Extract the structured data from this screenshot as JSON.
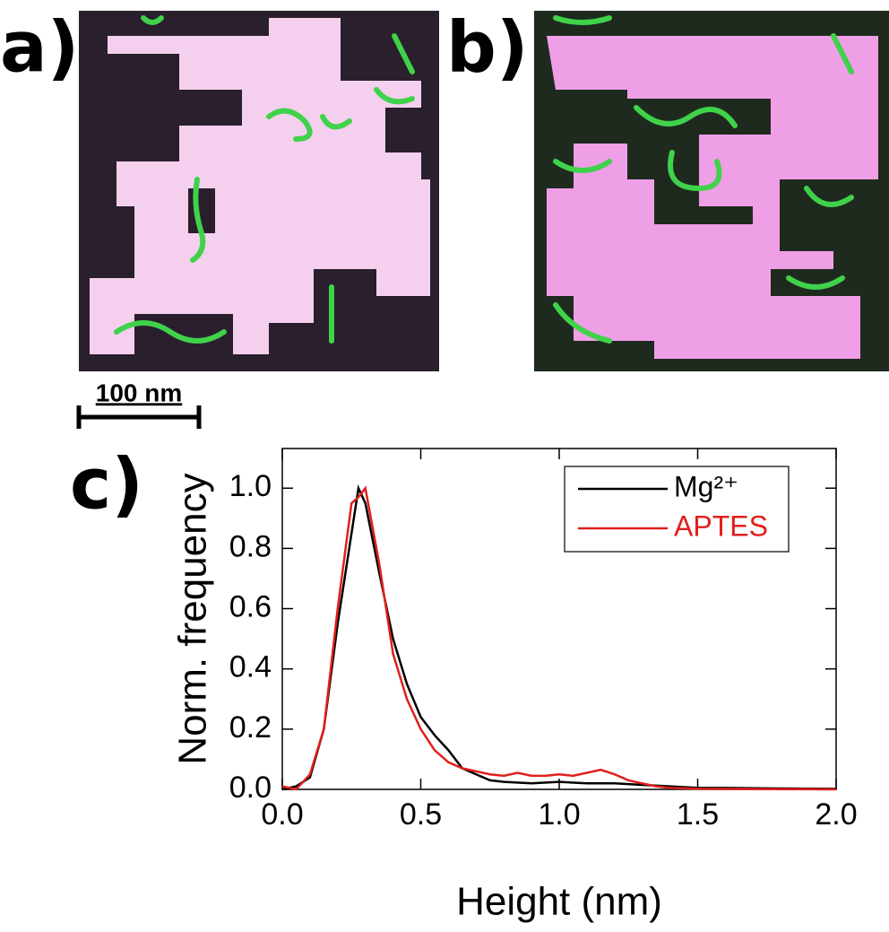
{
  "panels": {
    "a": "a)",
    "b": "b)",
    "scale_bar": "100 nm"
  },
  "chart_data": {
    "type": "line",
    "panel_label": "c)",
    "x_label": "Height (nm)",
    "y_label": "Norm. frequency",
    "xlim": [
      0,
      2
    ],
    "ylim": [
      0,
      1.1
    ],
    "xticks": [
      {
        "value": 0,
        "label": "0.0"
      },
      0.5,
      {
        "value": 1,
        "label": "1.0"
      },
      1.5,
      {
        "value": 2,
        "label": "2.0"
      }
    ],
    "yticks": [
      {
        "value": 0,
        "label": "0.0"
      },
      0.2,
      0.4,
      0.6,
      0.8,
      {
        "value": 1,
        "label": "1.0"
      }
    ],
    "legend": "top-right",
    "series": [
      {
        "name": "Mg²⁺",
        "color": "#000000",
        "x": [
          0,
          0.05,
          0.1,
          0.15,
          0.2,
          0.25,
          0.275,
          0.3,
          0.35,
          0.4,
          0.45,
          0.5,
          0.55,
          0.6,
          0.65,
          0.7,
          0.75,
          0.8,
          0.9,
          1.0,
          1.1,
          1.2,
          1.3,
          1.4,
          1.5,
          1.6,
          1.8,
          2.0
        ],
        "values": [
          0,
          0.01,
          0.04,
          0.2,
          0.55,
          0.85,
          1.0,
          0.95,
          0.72,
          0.5,
          0.35,
          0.24,
          0.18,
          0.13,
          0.07,
          0.05,
          0.03,
          0.025,
          0.02,
          0.025,
          0.02,
          0.02,
          0.015,
          0.01,
          0.005,
          0.005,
          0.003,
          0.002
        ]
      },
      {
        "name": "APTES",
        "color": "#e0201c",
        "x": [
          0,
          0.05,
          0.1,
          0.15,
          0.2,
          0.25,
          0.275,
          0.3,
          0.35,
          0.4,
          0.45,
          0.5,
          0.55,
          0.6,
          0.65,
          0.7,
          0.75,
          0.8,
          0.85,
          0.9,
          0.95,
          1.0,
          1.05,
          1.1,
          1.15,
          1.2,
          1.25,
          1.3,
          1.35,
          1.4,
          1.5,
          2.0
        ],
        "values": [
          0.01,
          0,
          0.05,
          0.2,
          0.6,
          0.95,
          0.97,
          1.0,
          0.75,
          0.45,
          0.3,
          0.2,
          0.13,
          0.09,
          0.07,
          0.06,
          0.05,
          0.045,
          0.055,
          0.045,
          0.045,
          0.05,
          0.045,
          0.055,
          0.065,
          0.05,
          0.03,
          0.02,
          0.01,
          0.005,
          0.002,
          0
        ]
      }
    ]
  }
}
